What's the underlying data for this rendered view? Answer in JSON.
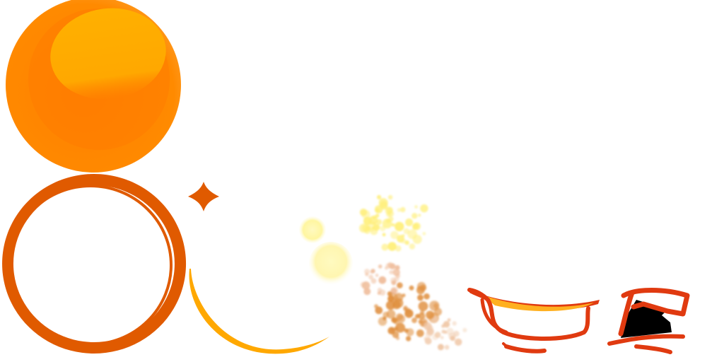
{
  "sheet": {
    "background": "#ffffff",
    "sprites": [
      {
        "id": "orange-ball",
        "icon": "orange-ball-icon"
      },
      {
        "id": "ring",
        "icon": "orange-ring-icon"
      },
      {
        "id": "sparkle",
        "icon": "sparkle-icon"
      },
      {
        "id": "arc",
        "icon": "orange-arc-icon"
      },
      {
        "id": "glow-orbs",
        "icon": "glow-orb-icon"
      },
      {
        "id": "yellow-particles",
        "icon": "yellow-particles-icon"
      },
      {
        "id": "brown-particles",
        "icon": "brown-particles-icon"
      },
      {
        "id": "smile-mouth",
        "icon": "smile-mouth-icon"
      },
      {
        "id": "shout-mouth",
        "icon": "shout-mouth-icon"
      }
    ],
    "colors": {
      "ball_outer": "#ff8a00",
      "ball_inner": "#ff7a00",
      "ball_highlight": "#ffb000",
      "ring": "#e05a00",
      "arc": "#ffa800",
      "sparkle": "#e05a00",
      "glow": "#fff6a0",
      "yellow_dust": "#fff080",
      "brown_dust": "#e09040",
      "mouth_line": "#e03a10",
      "mouth_teeth": "#ffb020",
      "mouth_inside": "#000000"
    }
  }
}
